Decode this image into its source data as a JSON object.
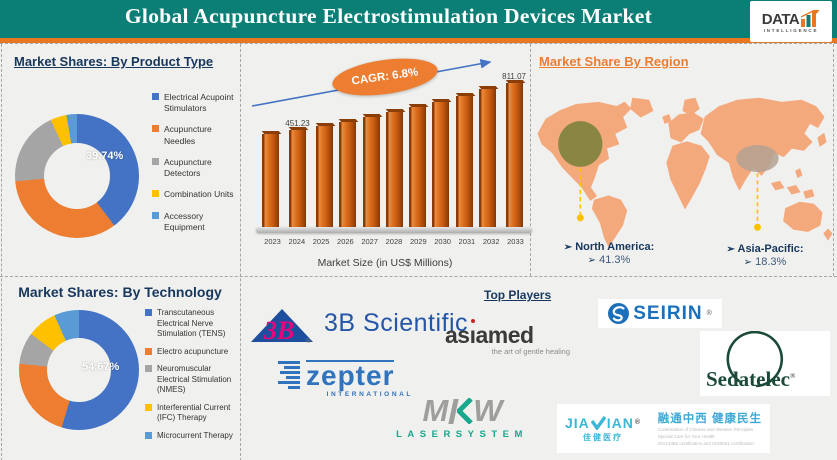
{
  "header": {
    "title": "Global Acupuncture Electrostimulation Devices Market",
    "logo": {
      "word": "DATA",
      "sub": "INTELLIGENCE"
    }
  },
  "chart_data": [
    {
      "type": "pie",
      "subtype": "donut",
      "title": "Market Shares: By Product Type",
      "labels": [
        "Electrical Acupoint Stimulators",
        "Acupuncture Needles",
        "Acupuncture Detectors",
        "Combination Units",
        "Accessory Equipment"
      ],
      "values": [
        39.74,
        33.9,
        19.4,
        4.2,
        2.76
      ],
      "colors": [
        "#4472C4",
        "#ED7D31",
        "#A5A5A5",
        "#FFC000",
        "#5B9BD5"
      ],
      "value_label": "39.74%",
      "legend_position": "right"
    },
    {
      "type": "bar",
      "title": "Market Size (in US$ Millions)",
      "cagr_label": "CAGR: 6.8%",
      "x": [
        "2023",
        "2024",
        "2025",
        "2026",
        "2027",
        "2028",
        "2029",
        "2030",
        "2031",
        "2032",
        "2033"
      ],
      "values": [
        422.5,
        451.23,
        481.9,
        514.7,
        549.7,
        587.1,
        627.0,
        669.6,
        715.1,
        763.8,
        811.07
      ],
      "labeled_indices": [
        1,
        10
      ],
      "bar_color": "#C65A10",
      "grid": false
    },
    {
      "type": "pie",
      "subtype": "donut",
      "title": "Market Shares: By Technology",
      "labels": [
        "Transcutaneous Electrical Nerve Stimulation (TENS)",
        "Electro acupuncture",
        "Neuromuscular Electrical Stimulation (NMES)",
        "Interferential Current (IFC) Therapy",
        "Microcurrent Therapy"
      ],
      "values": [
        54.67,
        22.0,
        8.6,
        8.0,
        6.73
      ],
      "colors": [
        "#4472C4",
        "#ED7D31",
        "#A5A5A5",
        "#FFC000",
        "#5B9BD5"
      ],
      "value_label": "54.67%",
      "legend_position": "right"
    }
  ],
  "region": {
    "title": "Market Share By Region",
    "marker": "➢",
    "items": [
      {
        "name": "North America:",
        "value": "41.3%"
      },
      {
        "name": "Asia-Pacific:",
        "value": "18.3%"
      }
    ]
  },
  "players": {
    "title": "Top Players",
    "threeb": {
      "mark": "3B",
      "name": "3B Scientific",
      "reg": "®"
    },
    "asiamed": {
      "name": "asiamed",
      "part1": "as",
      "part2": "ı",
      "part3": "amed",
      "tagline": "the art of gentle healing"
    },
    "seirin": {
      "name": "SEIRIN",
      "reg": "®"
    },
    "zepter": {
      "name": "zepter",
      "sub": "INTERNATIONAL"
    },
    "sedatelec": {
      "name": "Sedatelec",
      "reg": "®"
    },
    "mkw": {
      "m": "M",
      "w": "W",
      "sub": "LASERSYSTEM"
    },
    "jiajian": {
      "left": "JIA",
      "right": "IAN",
      "reg": "®",
      "badge": "佳健医疗",
      "slogan": "融通中西 健康民生",
      "line1": "Combination of Chinese and Western Principles",
      "line2": "Special Care for Your Health",
      "line3": "ISO13485 certification and ISO9001 certification"
    }
  },
  "colors": {
    "header_teal": "#0B7F75",
    "accent_orange": "#E87722",
    "navy": "#17375D",
    "map_land": "#F4A97C",
    "na_marker": "#6E7D35",
    "ap_marker": "#B3A193",
    "leader_yellow": "#FFC000"
  }
}
